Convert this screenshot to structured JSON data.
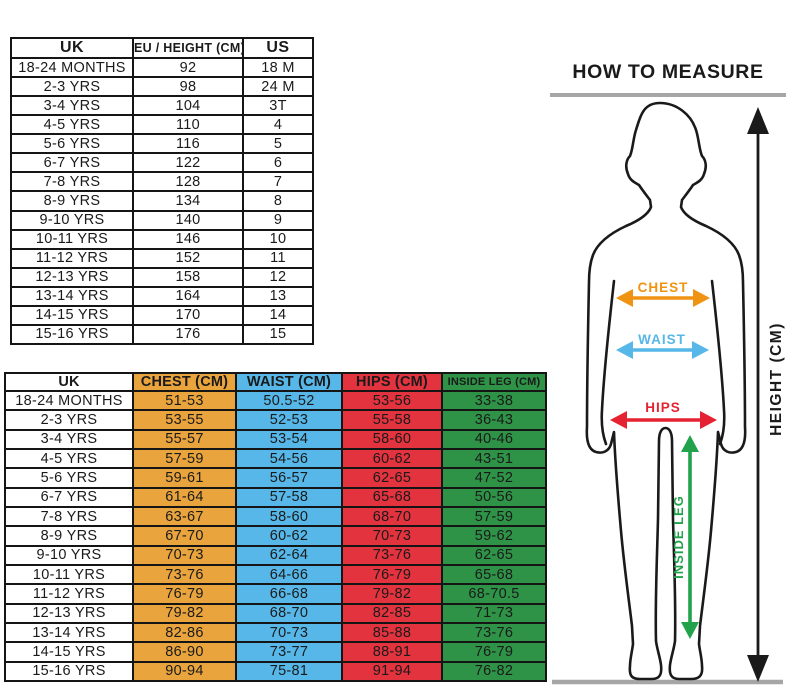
{
  "size_table": {
    "columns": [
      "UK",
      "EU / HEIGHT (CM)",
      "US"
    ],
    "rows": [
      [
        "18-24 MONTHS",
        "92",
        "18 M"
      ],
      [
        "2-3 YRS",
        "98",
        "24 M"
      ],
      [
        "3-4 YRS",
        "104",
        "3T"
      ],
      [
        "4-5 YRS",
        "110",
        "4"
      ],
      [
        "5-6 YRS",
        "116",
        "5"
      ],
      [
        "6-7 YRS",
        "122",
        "6"
      ],
      [
        "7-8 YRS",
        "128",
        "7"
      ],
      [
        "8-9 YRS",
        "134",
        "8"
      ],
      [
        "9-10 YRS",
        "140",
        "9"
      ],
      [
        "10-11 YRS",
        "146",
        "10"
      ],
      [
        "11-12 YRS",
        "152",
        "11"
      ],
      [
        "12-13 YRS",
        "158",
        "12"
      ],
      [
        "13-14 YRS",
        "164",
        "13"
      ],
      [
        "14-15 YRS",
        "170",
        "14"
      ],
      [
        "15-16 YRS",
        "176",
        "15"
      ]
    ]
  },
  "measurement_table": {
    "columns": [
      {
        "label": "UK",
        "color": "#FFFFFF"
      },
      {
        "label": "CHEST (CM)",
        "color": "#E9A43D"
      },
      {
        "label": "WAIST (CM)",
        "color": "#56B7E8"
      },
      {
        "label": "HIPS (CM)",
        "color": "#E2333F"
      },
      {
        "label": "INSIDE LEG (CM)",
        "color": "#2E9347"
      }
    ],
    "rows": [
      [
        "18-24 MONTHS",
        "51-53",
        "50.5-52",
        "53-56",
        "33-38"
      ],
      [
        "2-3 YRS",
        "53-55",
        "52-53",
        "55-58",
        "36-43"
      ],
      [
        "3-4 YRS",
        "55-57",
        "53-54",
        "58-60",
        "40-46"
      ],
      [
        "4-5 YRS",
        "57-59",
        "54-56",
        "60-62",
        "43-51"
      ],
      [
        "5-6 YRS",
        "59-61",
        "56-57",
        "62-65",
        "47-52"
      ],
      [
        "6-7 YRS",
        "61-64",
        "57-58",
        "65-68",
        "50-56"
      ],
      [
        "7-8 YRS",
        "63-67",
        "58-60",
        "68-70",
        "57-59"
      ],
      [
        "8-9 YRS",
        "67-70",
        "60-62",
        "70-73",
        "59-62"
      ],
      [
        "9-10 YRS",
        "70-73",
        "62-64",
        "73-76",
        "62-65"
      ],
      [
        "10-11 YRS",
        "73-76",
        "64-66",
        "76-79",
        "65-68"
      ],
      [
        "11-12 YRS",
        "76-79",
        "66-68",
        "79-82",
        "68-70.5"
      ],
      [
        "12-13 YRS",
        "79-82",
        "68-70",
        "82-85",
        "71-73"
      ],
      [
        "13-14 YRS",
        "82-86",
        "70-73",
        "85-88",
        "73-76"
      ],
      [
        "14-15 YRS",
        "86-90",
        "73-77",
        "88-91",
        "76-79"
      ],
      [
        "15-16 YRS",
        "90-94",
        "75-81",
        "91-94",
        "76-82"
      ]
    ]
  },
  "how_to_measure": {
    "title": "HOW TO MEASURE",
    "chest_label": "CHEST",
    "waist_label": "WAIST",
    "hips_label": "HIPS",
    "inside_leg_label": "INSIDE LEG",
    "height_label": "HEIGHT (CM)",
    "colors": {
      "chest": "#F09312",
      "waist": "#56B7E8",
      "hips": "#E52231",
      "inside_leg": "#21A24B",
      "height": "#1A1A1A",
      "ground": "#A6A6A6",
      "outline": "#1A1A1A"
    }
  }
}
